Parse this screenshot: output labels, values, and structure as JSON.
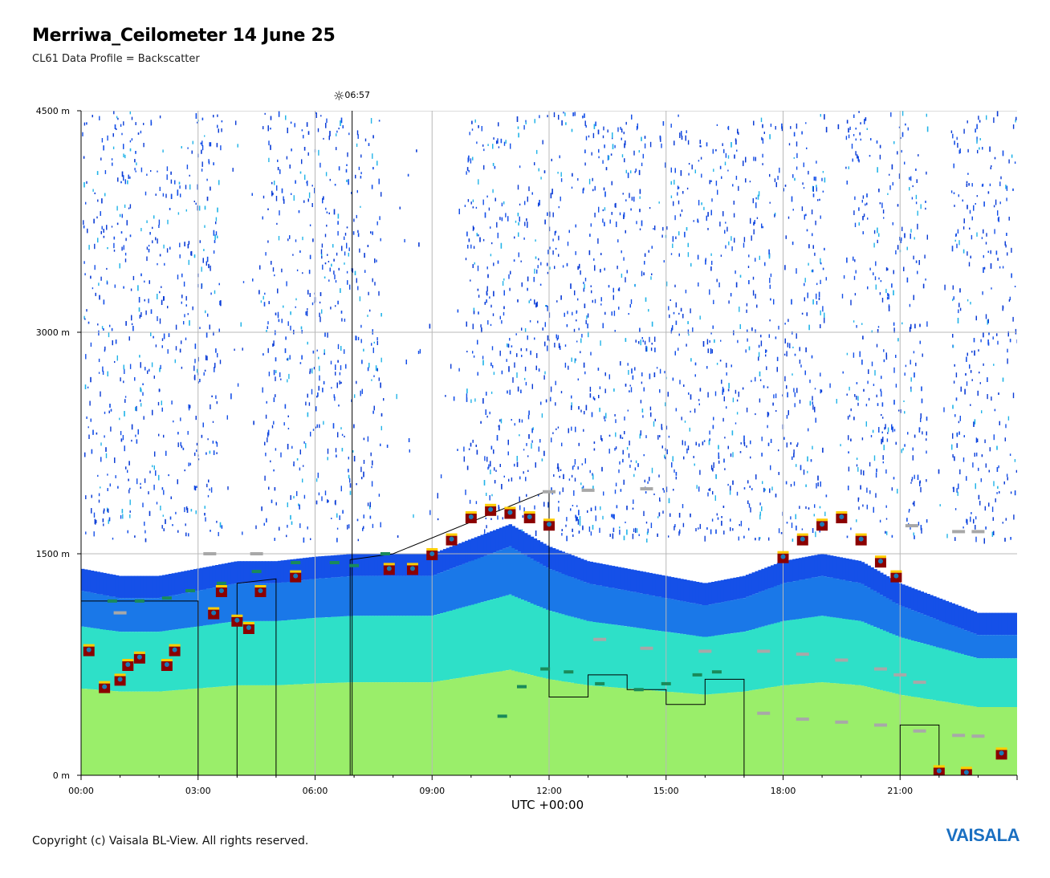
{
  "header": {
    "title": "Merriwa_Ceilometer 14 June 25",
    "subtitle": "CL61 Data Profile = Backscatter"
  },
  "sunrise": {
    "label": "06:57",
    "icon": "sunrise-icon"
  },
  "footer": {
    "copyright": "Copyright (c) Vaisala BL-View. All rights reserved.",
    "logo_text": "VAISALA"
  },
  "colors": {
    "background": "#ffffff",
    "grid": "#b8b8b8",
    "noise": "#1550e8",
    "layer_low": "#9aee6a",
    "layer_mid": "#2ee0c8",
    "layer_high": "#1a78e8",
    "cloud_edge": "#8b0000",
    "cloud_hot": "#ffcc00",
    "mlh_line": "#1a8a5a",
    "cloud_base_line": "#a8a8a8",
    "logo": "#1a6fc1"
  },
  "chart_data": {
    "type": "heatmap",
    "title": "Merriwa_Ceilometer 14 June 25",
    "subtitle": "CL61 Data Profile = Backscatter",
    "xlabel": "UTC +00:00",
    "ylabel": "",
    "x_unit": "hours UTC",
    "y_unit": "m",
    "xlim": [
      0,
      24
    ],
    "ylim": [
      0,
      4500
    ],
    "x_ticks": [
      0,
      3,
      6,
      9,
      12,
      15,
      18,
      21
    ],
    "x_tick_labels": [
      "00:00",
      "03:00",
      "06:00",
      "09:00",
      "12:00",
      "15:00",
      "18:00",
      "21:00"
    ],
    "y_ticks": [
      0,
      1500,
      3000,
      4500
    ],
    "y_tick_labels": [
      "0 m",
      "1500 m",
      "3000 m",
      "4500 m"
    ],
    "grid": true,
    "sunrise_time_hours": 6.95,
    "aerosol_layer_top_m": [
      [
        0.0,
        1400
      ],
      [
        1.0,
        1350
      ],
      [
        2.0,
        1350
      ],
      [
        3.0,
        1400
      ],
      [
        4.0,
        1450
      ],
      [
        5.0,
        1450
      ],
      [
        6.0,
        1480
      ],
      [
        7.0,
        1500
      ],
      [
        8.0,
        1500
      ],
      [
        9.0,
        1500
      ],
      [
        10.0,
        1600
      ],
      [
        11.0,
        1700
      ],
      [
        12.0,
        1550
      ],
      [
        13.0,
        1450
      ],
      [
        14.0,
        1400
      ],
      [
        15.0,
        1350
      ],
      [
        16.0,
        1300
      ],
      [
        17.0,
        1350
      ],
      [
        18.0,
        1450
      ],
      [
        19.0,
        1500
      ],
      [
        20.0,
        1450
      ],
      [
        21.0,
        1300
      ],
      [
        22.0,
        1200
      ],
      [
        23.0,
        1100
      ],
      [
        24.0,
        1100
      ]
    ],
    "cloud_layer_m": [
      [
        0.2,
        850
      ],
      [
        0.6,
        600
      ],
      [
        1.0,
        650
      ],
      [
        1.2,
        750
      ],
      [
        1.5,
        800
      ],
      [
        2.2,
        750
      ],
      [
        2.4,
        850
      ],
      [
        3.4,
        1100
      ],
      [
        3.6,
        1250
      ],
      [
        4.0,
        1050
      ],
      [
        4.3,
        1000
      ],
      [
        4.6,
        1250
      ],
      [
        5.5,
        1350
      ],
      [
        7.9,
        1400
      ],
      [
        8.5,
        1400
      ],
      [
        9.0,
        1500
      ],
      [
        9.5,
        1600
      ],
      [
        10.0,
        1750
      ],
      [
        10.5,
        1800
      ],
      [
        11.0,
        1780
      ],
      [
        11.5,
        1750
      ],
      [
        12.0,
        1700
      ],
      [
        18.0,
        1480
      ],
      [
        18.5,
        1600
      ],
      [
        19.0,
        1700
      ],
      [
        19.5,
        1750
      ],
      [
        20.0,
        1600
      ],
      [
        20.5,
        1450
      ],
      [
        20.9,
        1350
      ],
      [
        22.0,
        30
      ],
      [
        22.7,
        20
      ],
      [
        23.6,
        150
      ]
    ],
    "mixing_layer_height_m": [
      [
        0.8,
        1180
      ],
      [
        1.5,
        1180
      ],
      [
        2.2,
        1200
      ],
      [
        2.8,
        1250
      ],
      [
        3.6,
        1300
      ],
      [
        4.5,
        1380
      ],
      [
        5.5,
        1440
      ],
      [
        6.5,
        1440
      ],
      [
        7.0,
        1420
      ],
      [
        7.8,
        1500
      ],
      [
        10.8,
        400
      ],
      [
        11.3,
        600
      ],
      [
        11.9,
        720
      ],
      [
        12.5,
        700
      ],
      [
        13.3,
        620
      ],
      [
        14.3,
        580
      ],
      [
        15.0,
        620
      ],
      [
        15.8,
        680
      ],
      [
        16.3,
        700
      ]
    ],
    "cloud_base_m": [
      [
        1.0,
        1100
      ],
      [
        3.3,
        1500
      ],
      [
        4.5,
        1500
      ],
      [
        14.5,
        1940
      ],
      [
        13.0,
        1930
      ],
      [
        12.0,
        1920
      ],
      [
        13.3,
        920
      ],
      [
        14.5,
        860
      ],
      [
        16.0,
        840
      ],
      [
        17.5,
        840
      ],
      [
        18.5,
        820
      ],
      [
        19.5,
        780
      ],
      [
        20.5,
        720
      ],
      [
        21.0,
        680
      ],
      [
        21.5,
        630
      ],
      [
        17.5,
        420
      ],
      [
        18.5,
        380
      ],
      [
        19.5,
        360
      ],
      [
        20.5,
        340
      ],
      [
        21.5,
        300
      ],
      [
        22.5,
        270
      ],
      [
        23.0,
        265
      ],
      [
        21.3,
        1690
      ],
      [
        22.5,
        1650
      ],
      [
        23.0,
        1650
      ]
    ],
    "step_layer_m": [
      [
        0.0,
        1180
      ],
      [
        3.0,
        1180
      ],
      [
        3.0,
        0
      ],
      [
        4.0,
        0
      ],
      [
        4.0,
        1300
      ],
      [
        5.0,
        1330
      ],
      [
        5.0,
        0
      ],
      [
        6.9,
        0
      ],
      [
        6.9,
        1460
      ],
      [
        8.0,
        1500
      ],
      [
        11.9,
        1920
      ],
      [
        12.0,
        1920
      ],
      [
        12.0,
        530
      ],
      [
        13.0,
        530
      ],
      [
        13.0,
        680
      ],
      [
        14.0,
        680
      ],
      [
        14.0,
        580
      ],
      [
        15.0,
        580
      ],
      [
        15.0,
        480
      ],
      [
        16.0,
        480
      ],
      [
        16.0,
        650
      ],
      [
        17.0,
        650
      ],
      [
        17.0,
        0
      ],
      [
        21.0,
        0
      ],
      [
        21.0,
        340
      ],
      [
        22.0,
        340
      ],
      [
        22.0,
        0
      ]
    ]
  }
}
